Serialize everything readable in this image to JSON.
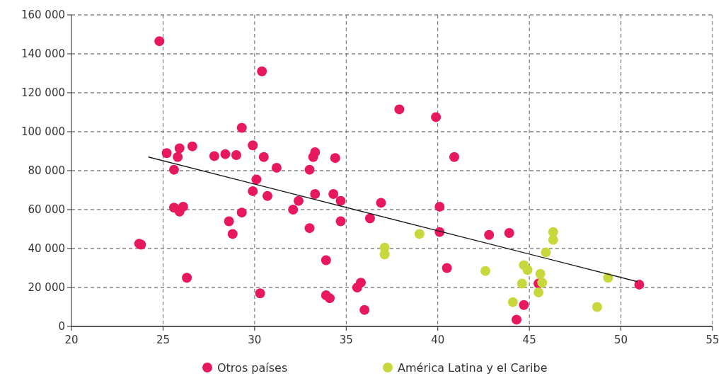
{
  "chart_data": {
    "type": "scatter",
    "xlim": [
      20,
      55
    ],
    "xticks": [
      20,
      25,
      30,
      35,
      40,
      45,
      50,
      55
    ],
    "ylim": [
      0,
      160000
    ],
    "yticks": [
      {
        "value": 0,
        "label": "0"
      },
      {
        "value": 20000,
        "label": "20 000"
      },
      {
        "value": 40000,
        "label": "40 000"
      },
      {
        "value": 60000,
        "label": "60 000"
      },
      {
        "value": 80000,
        "label": "80 000"
      },
      {
        "value": 100000,
        "label": "100 000"
      },
      {
        "value": 120000,
        "label": "120 000"
      },
      {
        "value": 140000,
        "label": "140 000"
      },
      {
        "value": 160000,
        "label": "160 000"
      }
    ],
    "grid": true,
    "legend": "bottom",
    "marker": "circle",
    "series": [
      {
        "name": "Otros países",
        "color": "#e8185c",
        "x": [
          23.7,
          23.8,
          24.8,
          25.2,
          25.6,
          25.8,
          25.9,
          25.6,
          25.9,
          26.1,
          26.3,
          26.6,
          27.8,
          28.4,
          29.0,
          28.6,
          28.8,
          29.3,
          29.3,
          29.9,
          29.9,
          30.1,
          30.3,
          30.4,
          30.5,
          30.7,
          31.2,
          32.1,
          32.4,
          33.0,
          33.0,
          33.2,
          33.3,
          33.3,
          33.9,
          33.9,
          34.1,
          34.4,
          34.3,
          34.7,
          34.7,
          35.6,
          35.8,
          36.0,
          36.3,
          36.9,
          37.9,
          39.9,
          40.1,
          40.1,
          40.5,
          40.9,
          42.8,
          43.9,
          44.3,
          44.7,
          45.5,
          51.0
        ],
        "values": [
          42500,
          42000,
          146500,
          89000,
          80500,
          87000,
          91500,
          61000,
          59000,
          61500,
          25000,
          92500,
          87500,
          88500,
          88000,
          54000,
          47500,
          102000,
          58500,
          93000,
          69500,
          75500,
          17000,
          131000,
          87000,
          67000,
          81500,
          60000,
          64500,
          80500,
          50500,
          87000,
          89500,
          68000,
          34000,
          16000,
          14500,
          86500,
          68000,
          54000,
          64500,
          20000,
          22500,
          8500,
          55500,
          63500,
          111500,
          107500,
          61500,
          48500,
          30000,
          87000,
          47000,
          48000,
          3500,
          11000,
          22000,
          21500
        ]
      },
      {
        "name": "América Latina y el Caribe",
        "color": "#c8d83c",
        "x": [
          39.0,
          37.1,
          37.1,
          42.6,
          44.1,
          44.6,
          44.7,
          44.9,
          45.5,
          45.6,
          45.7,
          45.9,
          46.3,
          46.3,
          48.7,
          49.3
        ],
        "values": [
          47500,
          40500,
          37000,
          28500,
          12500,
          22000,
          31500,
          29000,
          17500,
          27000,
          22500,
          38000,
          48500,
          44500,
          10000,
          25000
        ]
      },
      {
        "type": "line",
        "color": "#1a1a1a",
        "marker": "none",
        "x": [
          24.2,
          50.9
        ],
        "values": [
          87000,
          23000
        ]
      }
    ]
  }
}
